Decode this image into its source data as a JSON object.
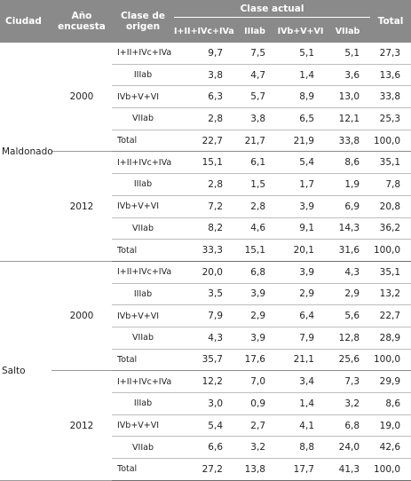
{
  "headers": {
    "ciudad": "Ciudad",
    "anio_line1": "Año",
    "anio_line2": "encuesta",
    "clase_origen_line1": "Clase de",
    "clase_origen_line2": "origen",
    "clase_actual": "Clase actual",
    "total": "Total",
    "subcols": [
      "I+II+IVc+IVa",
      "IIIab",
      "IVb+V+VI",
      "VIIab"
    ]
  },
  "cities": [
    {
      "name": "Maldonado",
      "years": [
        {
          "year": "2000",
          "rows": [
            {
              "clase": "I+II+IVc+IVa",
              "values": [
                "9,7",
                "7,5",
                "5,1",
                "5,1"
              ],
              "total": "27,3"
            },
            {
              "clase": "IIIab",
              "values": [
                "3,8",
                "4,7",
                "1,4",
                "3,6"
              ],
              "total": "13,6"
            },
            {
              "clase": "IVb+V+VI",
              "values": [
                "6,3",
                "5,7",
                "8,9",
                "13,0"
              ],
              "total": "33,8"
            },
            {
              "clase": "VIIab",
              "values": [
                "2,8",
                "3,8",
                "6,5",
                "12,1"
              ],
              "total": "25,3"
            },
            {
              "clase": "Total",
              "values": [
                "22,7",
                "21,7",
                "21,9",
                "33,8"
              ],
              "total": "100,0"
            }
          ]
        },
        {
          "year": "2012",
          "rows": [
            {
              "clase": "I+II+IVc+IVa",
              "values": [
                "15,1",
                "6,1",
                "5,4",
                "8,6"
              ],
              "total": "35,1"
            },
            {
              "clase": "IIIab",
              "values": [
                "2,8",
                "1,5",
                "1,7",
                "1,9"
              ],
              "total": "7,8"
            },
            {
              "clase": "IVb+V+VI",
              "values": [
                "7,2",
                "2,8",
                "3,9",
                "6,9"
              ],
              "total": "20,8"
            },
            {
              "clase": "VIIab",
              "values": [
                "8,2",
                "4,6",
                "9,1",
                "14,3"
              ],
              "total": "36,2"
            },
            {
              "clase": "Total",
              "values": [
                "33,3",
                "15,1",
                "20,1",
                "31,6"
              ],
              "total": "100,0"
            }
          ]
        }
      ]
    },
    {
      "name": "Salto",
      "years": [
        {
          "year": "2000",
          "rows": [
            {
              "clase": "I+II+IVc+IVa",
              "values": [
                "20,0",
                "6,8",
                "3,9",
                "4,3"
              ],
              "total": "35,1"
            },
            {
              "clase": "IIIab",
              "values": [
                "3,5",
                "3,9",
                "2,9",
                "2,9"
              ],
              "total": "13,2"
            },
            {
              "clase": "IVb+V+VI",
              "values": [
                "7,9",
                "2,9",
                "6,4",
                "5,6"
              ],
              "total": "22,7"
            },
            {
              "clase": "VIIab",
              "values": [
                "4,3",
                "3,9",
                "7,9",
                "12,8"
              ],
              "total": "28,9"
            },
            {
              "clase": "Total",
              "values": [
                "35,7",
                "17,6",
                "21,1",
                "25,6"
              ],
              "total": "100,0"
            }
          ]
        },
        {
          "year": "2012",
          "rows": [
            {
              "clase": "I+II+IVc+IVa",
              "values": [
                "12,2",
                "7,0",
                "3,4",
                "7,3"
              ],
              "total": "29,9"
            },
            {
              "clase": "IIIab",
              "values": [
                "3,0",
                "0,9",
                "1,4",
                "3,2"
              ],
              "total": "8,6"
            },
            {
              "clase": "IVb+V+VI",
              "values": [
                "5,4",
                "2,7",
                "4,1",
                "6,8"
              ],
              "total": "19,0"
            },
            {
              "clase": "VIIab",
              "values": [
                "6,6",
                "3,2",
                "8,8",
                "24,0"
              ],
              "total": "42,6"
            },
            {
              "clase": "Total",
              "values": [
                "27,2",
                "13,8",
                "17,7",
                "41,3"
              ],
              "total": "100,0"
            }
          ]
        }
      ]
    }
  ]
}
